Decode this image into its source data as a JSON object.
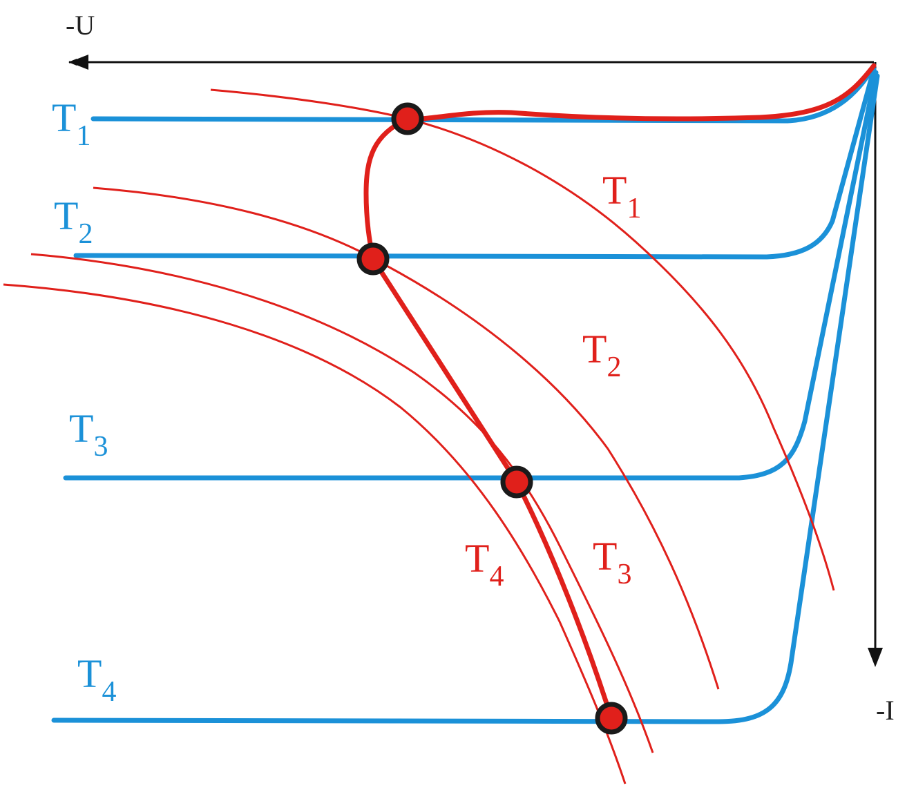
{
  "axes": {
    "u_label": "-U",
    "i_label": "-I"
  },
  "blue_curves": [
    {
      "letter": "T",
      "index": "1"
    },
    {
      "letter": "T",
      "index": "2"
    },
    {
      "letter": "T",
      "index": "3"
    },
    {
      "letter": "T",
      "index": "4"
    }
  ],
  "red_curves": [
    {
      "letter": "T",
      "index": "1"
    },
    {
      "letter": "T",
      "index": "2"
    },
    {
      "letter": "T",
      "index": "3"
    },
    {
      "letter": "T",
      "index": "4"
    }
  ]
}
